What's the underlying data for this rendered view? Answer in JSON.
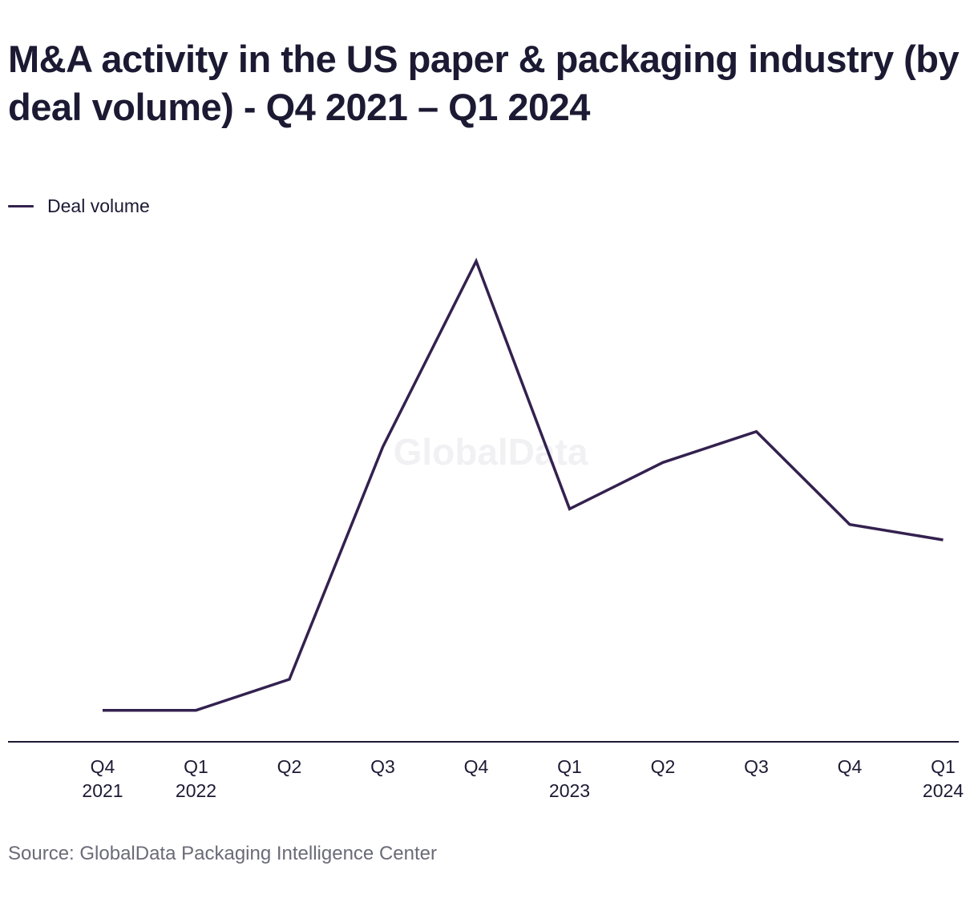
{
  "title": "M&A activity in the US paper & packaging industry (by deal volume) - Q4 2021 – Q1 2024",
  "legend": {
    "label": "Deal volume"
  },
  "watermark": "GlobalData",
  "source": "Source: GlobalData Packaging Intelligence Center",
  "colors": {
    "line": "#33214f",
    "axis": "#1c1a33",
    "text": "#1c1a33",
    "source": "#6b6b78"
  },
  "chart_data": {
    "type": "line",
    "title": "M&A activity in the US paper & packaging industry (by deal volume) - Q4 2021 – Q1 2024",
    "xlabel": "",
    "ylabel": "",
    "categories": [
      [
        "Q4",
        "2021"
      ],
      [
        "Q1",
        "2022"
      ],
      [
        "Q2",
        ""
      ],
      [
        "Q3",
        ""
      ],
      [
        "Q4",
        ""
      ],
      [
        "Q1",
        "2023"
      ],
      [
        "Q2",
        ""
      ],
      [
        "Q3",
        ""
      ],
      [
        "Q4",
        ""
      ],
      [
        "Q1",
        "2024"
      ]
    ],
    "series": [
      {
        "name": "Deal volume",
        "values": [
          1,
          1,
          3,
          18,
          30,
          14,
          17,
          19,
          13,
          12
        ]
      }
    ],
    "ylim": [
      0,
      30
    ],
    "grid": false,
    "legend_position": "top-left",
    "y_axis_visible": false
  }
}
